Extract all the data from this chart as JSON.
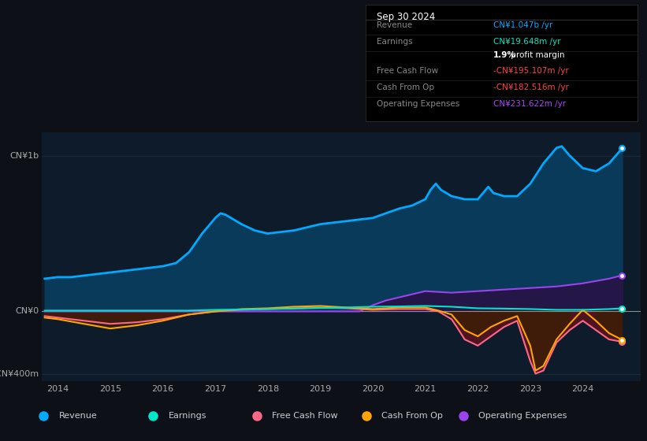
{
  "bg_color": "#0d1117",
  "plot_bg_color": "#0d1b2a",
  "ylabel_top": "CN¥1b",
  "ylabel_bottom": "-CN¥400m",
  "y0_label": "CN¥0",
  "x_ticks": [
    2014,
    2015,
    2016,
    2017,
    2018,
    2019,
    2020,
    2021,
    2022,
    2023,
    2024
  ],
  "info_box": {
    "title": "Sep 30 2024",
    "rows": [
      {
        "label": "Revenue",
        "value": "CN¥1.047b /yr",
        "value_color": "#00aaff"
      },
      {
        "label": "Earnings",
        "value": "CN¥19.648m /yr",
        "value_color": "#00e5c8"
      },
      {
        "label": "",
        "value": "1.9% profit margin",
        "value_color": "#ffffff",
        "bold_part": "1.9%"
      },
      {
        "label": "Free Cash Flow",
        "value": "-CN¥195.107m /yr",
        "value_color": "#ff4444"
      },
      {
        "label": "Cash From Op",
        "value": "-CN¥182.516m /yr",
        "value_color": "#ff4444"
      },
      {
        "label": "Operating Expenses",
        "value": "CN¥231.622m /yr",
        "value_color": "#aa44ff"
      }
    ]
  },
  "series": {
    "revenue": {
      "color": "#00aaff",
      "fill_color": "#0a3a5a",
      "label": "Revenue",
      "x": [
        2013.75,
        2014.0,
        2014.25,
        2014.5,
        2014.75,
        2015.0,
        2015.25,
        2015.5,
        2015.75,
        2016.0,
        2016.25,
        2016.5,
        2016.75,
        2017.0,
        2017.1,
        2017.2,
        2017.3,
        2017.5,
        2017.75,
        2018.0,
        2018.25,
        2018.5,
        2018.75,
        2019.0,
        2019.25,
        2019.5,
        2019.75,
        2020.0,
        2020.25,
        2020.5,
        2020.75,
        2021.0,
        2021.1,
        2021.2,
        2021.3,
        2021.5,
        2021.75,
        2022.0,
        2022.1,
        2022.2,
        2022.3,
        2022.5,
        2022.75,
        2023.0,
        2023.25,
        2023.5,
        2023.6,
        2023.75,
        2024.0,
        2024.25,
        2024.5,
        2024.75
      ],
      "y": [
        0.21,
        0.22,
        0.22,
        0.23,
        0.24,
        0.25,
        0.26,
        0.27,
        0.28,
        0.29,
        0.31,
        0.38,
        0.5,
        0.6,
        0.63,
        0.62,
        0.6,
        0.56,
        0.52,
        0.5,
        0.51,
        0.52,
        0.54,
        0.56,
        0.57,
        0.58,
        0.59,
        0.6,
        0.63,
        0.66,
        0.68,
        0.72,
        0.78,
        0.82,
        0.78,
        0.74,
        0.72,
        0.72,
        0.76,
        0.8,
        0.76,
        0.74,
        0.74,
        0.82,
        0.95,
        1.05,
        1.06,
        1.0,
        0.92,
        0.9,
        0.95,
        1.047
      ]
    },
    "earnings": {
      "color": "#00e5c8",
      "label": "Earnings",
      "x": [
        2013.75,
        2014.0,
        2014.5,
        2015.0,
        2015.5,
        2016.0,
        2016.5,
        2017.0,
        2017.5,
        2018.0,
        2018.5,
        2019.0,
        2019.5,
        2020.0,
        2020.5,
        2021.0,
        2021.5,
        2022.0,
        2022.5,
        2023.0,
        2023.5,
        2024.0,
        2024.5,
        2024.75
      ],
      "y": [
        0.005,
        0.005,
        0.005,
        0.005,
        0.005,
        0.005,
        0.005,
        0.01,
        0.012,
        0.015,
        0.018,
        0.022,
        0.025,
        0.03,
        0.032,
        0.035,
        0.03,
        0.02,
        0.018,
        0.015,
        0.01,
        0.01,
        0.015,
        0.0196
      ]
    },
    "free_cash_flow": {
      "color": "#ff6688",
      "fill_color_neg": "#5a1520",
      "label": "Free Cash Flow",
      "x": [
        2013.75,
        2014.0,
        2014.5,
        2015.0,
        2015.5,
        2016.0,
        2016.5,
        2017.0,
        2017.5,
        2018.0,
        2018.5,
        2019.0,
        2019.5,
        2020.0,
        2020.5,
        2021.0,
        2021.25,
        2021.5,
        2021.6,
        2021.75,
        2022.0,
        2022.25,
        2022.5,
        2022.75,
        2023.0,
        2023.1,
        2023.25,
        2023.5,
        2023.75,
        2024.0,
        2024.25,
        2024.5,
        2024.75
      ],
      "y": [
        -0.03,
        -0.04,
        -0.06,
        -0.08,
        -0.07,
        -0.05,
        -0.02,
        0.0,
        0.01,
        0.015,
        0.02,
        0.025,
        0.02,
        0.01,
        0.015,
        0.015,
        0.0,
        -0.05,
        -0.1,
        -0.18,
        -0.22,
        -0.16,
        -0.1,
        -0.06,
        -0.32,
        -0.4,
        -0.38,
        -0.2,
        -0.12,
        -0.06,
        -0.12,
        -0.18,
        -0.195
      ]
    },
    "cash_from_op": {
      "color": "#ffa500",
      "fill_color_neg": "#3a2000",
      "label": "Cash From Op",
      "x": [
        2013.75,
        2014.0,
        2014.5,
        2015.0,
        2015.5,
        2016.0,
        2016.5,
        2017.0,
        2017.5,
        2018.0,
        2018.5,
        2019.0,
        2019.5,
        2020.0,
        2020.5,
        2021.0,
        2021.25,
        2021.5,
        2021.6,
        2021.75,
        2022.0,
        2022.25,
        2022.5,
        2022.75,
        2023.0,
        2023.1,
        2023.25,
        2023.5,
        2023.75,
        2024.0,
        2024.25,
        2024.5,
        2024.75
      ],
      "y": [
        -0.04,
        -0.05,
        -0.08,
        -0.11,
        -0.09,
        -0.06,
        -0.02,
        0.0,
        0.015,
        0.02,
        0.03,
        0.035,
        0.025,
        0.015,
        0.025,
        0.025,
        0.005,
        -0.02,
        -0.06,
        -0.12,
        -0.16,
        -0.1,
        -0.06,
        -0.03,
        -0.22,
        -0.38,
        -0.35,
        -0.18,
        -0.08,
        0.01,
        -0.06,
        -0.14,
        -0.1825
      ]
    },
    "operating_expenses": {
      "color": "#9944ee",
      "fill_color_pos": "#2a1045",
      "label": "Operating Expenses",
      "x": [
        2013.75,
        2014.0,
        2014.5,
        2015.0,
        2015.5,
        2016.0,
        2016.5,
        2017.0,
        2017.5,
        2018.0,
        2018.5,
        2019.0,
        2019.75,
        2020.0,
        2020.25,
        2020.5,
        2020.75,
        2021.0,
        2021.5,
        2022.0,
        2022.5,
        2023.0,
        2023.5,
        2024.0,
        2024.5,
        2024.75
      ],
      "y": [
        0.0,
        0.0,
        0.0,
        0.0,
        0.0,
        0.0,
        0.0,
        0.0,
        0.0,
        0.0,
        0.0,
        0.0,
        0.0,
        0.04,
        0.07,
        0.09,
        0.11,
        0.13,
        0.12,
        0.13,
        0.14,
        0.15,
        0.16,
        0.18,
        0.21,
        0.2316
      ]
    }
  },
  "ylim": [
    -0.45,
    1.15
  ],
  "xlim": [
    2013.7,
    2025.1
  ],
  "gridline_color": "#1e2d3a",
  "zero_line_color": "#aaaaaa",
  "legend_items": [
    {
      "label": "Revenue",
      "color": "#00aaff"
    },
    {
      "label": "Earnings",
      "color": "#00e5c8"
    },
    {
      "label": "Free Cash Flow",
      "color": "#ff6688"
    },
    {
      "label": "Cash From Op",
      "color": "#ffa500"
    },
    {
      "label": "Operating Expenses",
      "color": "#9944ee"
    }
  ]
}
